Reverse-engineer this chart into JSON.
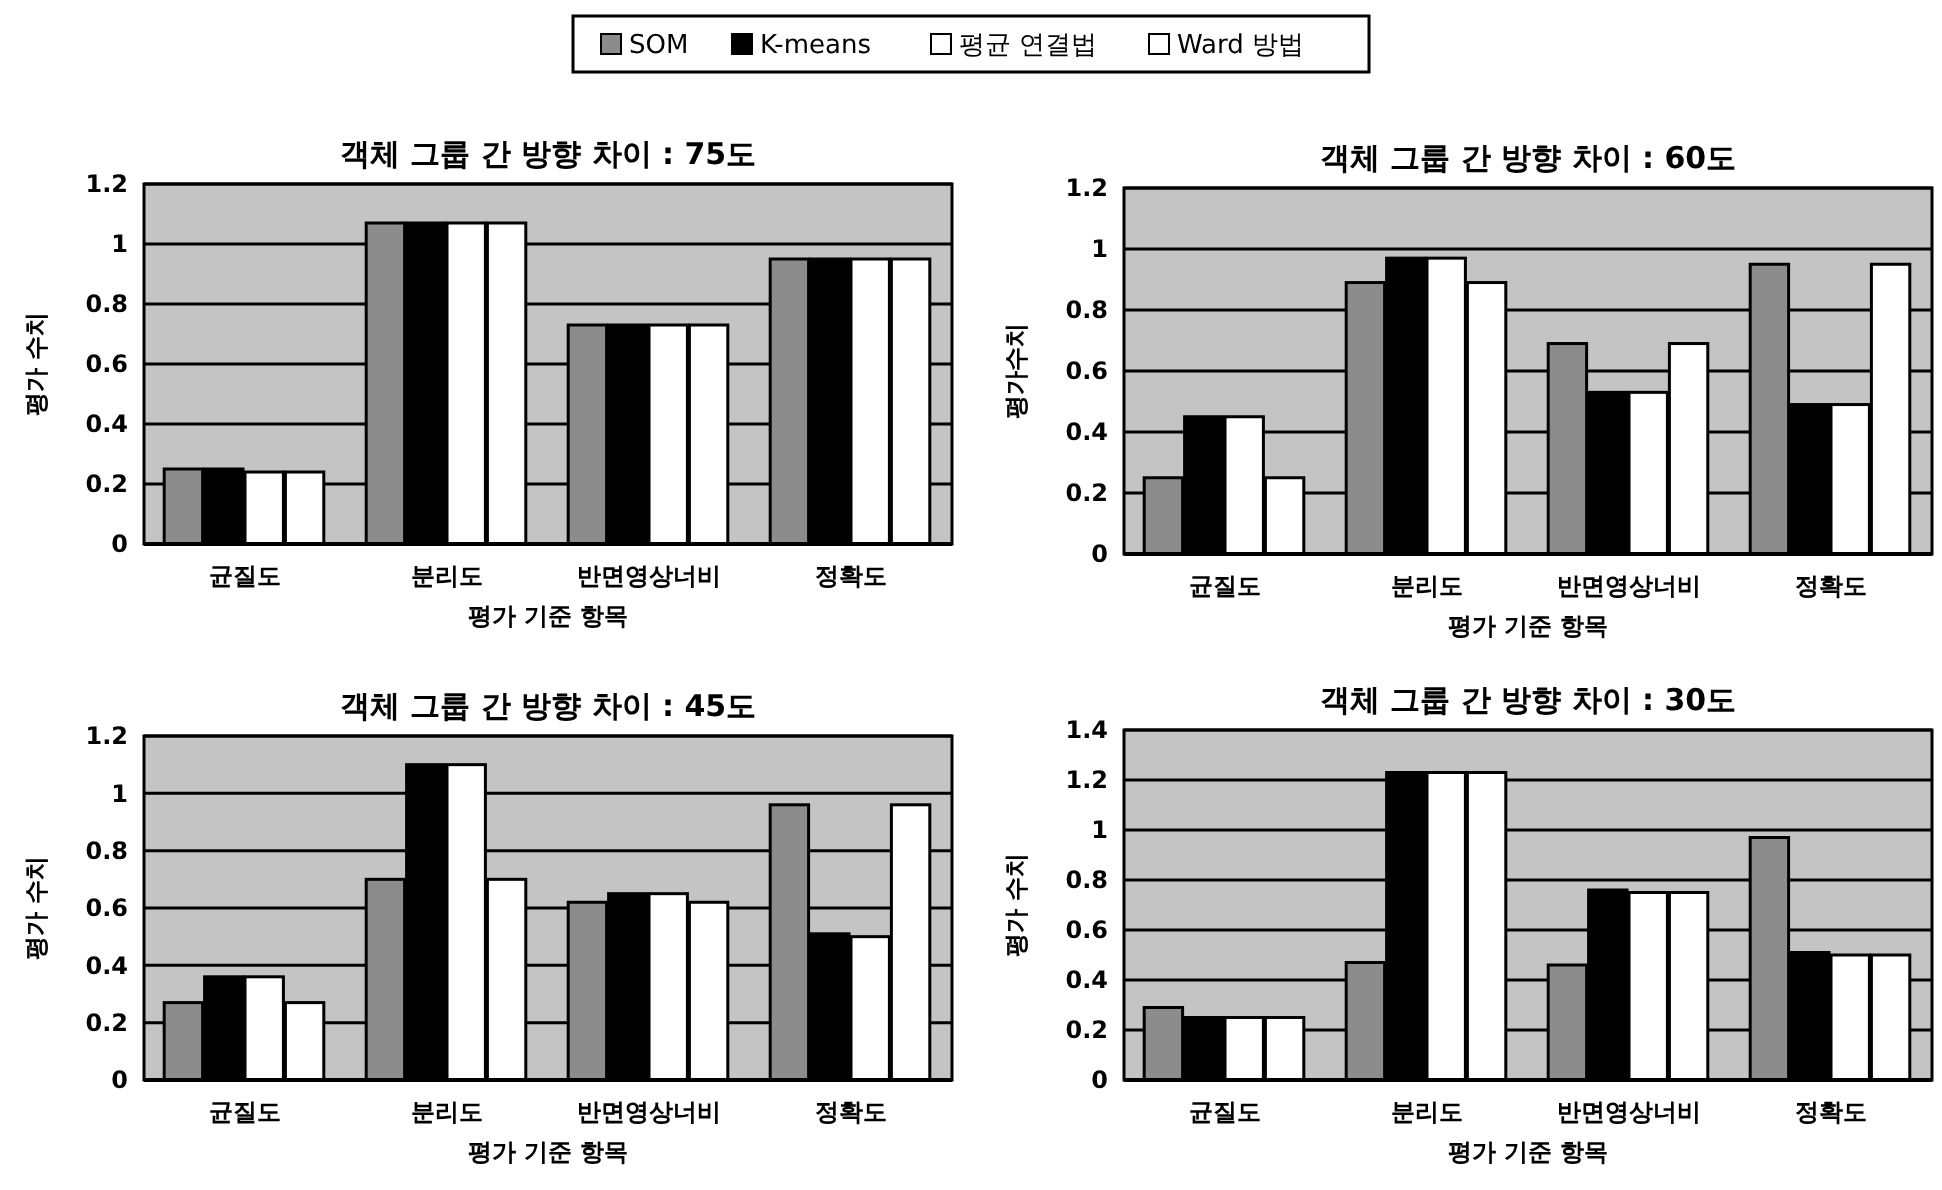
{
  "chart_data": [
    {
      "type": "bar",
      "title": "객체 그룹 간 방향 차이 : 75도",
      "xlabel": "평가 기준 항목",
      "ylabel": "평가 수치",
      "categories": [
        "균질도",
        "분리도",
        "반면영상너비",
        "정확도"
      ],
      "ylim": [
        0,
        1.2
      ],
      "yticks": [
        0,
        0.2,
        0.4,
        0.6,
        0.8,
        1,
        1.2
      ],
      "grid": "y",
      "legend": "top",
      "series": [
        {
          "name": "SOM",
          "color": "#8c8c8c",
          "values": [
            0.25,
            1.07,
            0.73,
            0.95
          ]
        },
        {
          "name": "K-means",
          "color": "#000000",
          "values": [
            0.25,
            1.07,
            0.73,
            0.95
          ]
        },
        {
          "name": "평균 연결법",
          "color": "#ffffff",
          "values": [
            0.24,
            1.07,
            0.73,
            0.95
          ]
        },
        {
          "name": "Ward 방법",
          "color": "#ffffff",
          "values": [
            0.24,
            1.07,
            0.73,
            0.95
          ]
        }
      ]
    },
    {
      "type": "bar",
      "title": "객체 그룹 간 방향 차이 : 60도",
      "xlabel": "평가 기준 항목",
      "ylabel": "평가수치",
      "categories": [
        "균질도",
        "분리도",
        "반면영상너비",
        "정확도"
      ],
      "ylim": [
        0,
        1.2
      ],
      "yticks": [
        0,
        0.2,
        0.4,
        0.6,
        0.8,
        1,
        1.2
      ],
      "grid": "y",
      "series": [
        {
          "color": "#8c8c8c",
          "values": [
            0.25,
            0.89,
            0.69,
            0.95
          ]
        },
        {
          "color": "#000000",
          "values": [
            0.45,
            0.97,
            0.53,
            0.49
          ]
        },
        {
          "color": "#ffffff",
          "values": [
            0.45,
            0.97,
            0.53,
            0.49
          ]
        },
        {
          "color": "#ffffff",
          "values": [
            0.25,
            0.89,
            0.69,
            0.95
          ]
        }
      ]
    },
    {
      "type": "bar",
      "title": "객체 그룹 간 방향 차이 : 45도",
      "xlabel": "평가 기준 항목",
      "ylabel": "평가 수치",
      "categories": [
        "균질도",
        "분리도",
        "반면영상너비",
        "정확도"
      ],
      "ylim": [
        0,
        1.2
      ],
      "yticks": [
        0,
        0.2,
        0.4,
        0.6,
        0.8,
        1,
        1.2
      ],
      "grid": "y",
      "series": [
        {
          "color": "#8c8c8c",
          "values": [
            0.27,
            0.7,
            0.62,
            0.96
          ]
        },
        {
          "color": "#000000",
          "values": [
            0.36,
            1.1,
            0.65,
            0.51
          ]
        },
        {
          "color": "#ffffff",
          "values": [
            0.36,
            1.1,
            0.65,
            0.5
          ]
        },
        {
          "color": "#ffffff",
          "values": [
            0.27,
            0.7,
            0.62,
            0.96
          ]
        }
      ]
    },
    {
      "type": "bar",
      "title": "객체 그룹 간 방향 차이 : 30도",
      "xlabel": "평가 기준 항목",
      "ylabel": "평가 수치",
      "categories": [
        "균질도",
        "분리도",
        "반면영상너비",
        "정확도"
      ],
      "ylim": [
        0,
        1.4
      ],
      "yticks": [
        0,
        0.2,
        0.4,
        0.6,
        0.8,
        1,
        1.2,
        1.4
      ],
      "grid": "y",
      "series": [
        {
          "color": "#8c8c8c",
          "values": [
            0.29,
            0.47,
            0.46,
            0.97
          ]
        },
        {
          "color": "#000000",
          "values": [
            0.25,
            1.23,
            0.76,
            0.51
          ]
        },
        {
          "color": "#ffffff",
          "values": [
            0.25,
            1.23,
            0.75,
            0.5
          ]
        },
        {
          "color": "#ffffff",
          "values": [
            0.25,
            1.23,
            0.75,
            0.5
          ]
        }
      ]
    }
  ]
}
